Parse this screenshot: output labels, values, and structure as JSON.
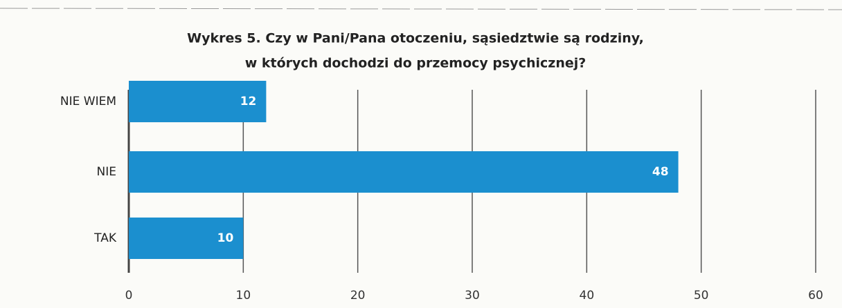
{
  "chart_data": {
    "type": "bar",
    "orientation": "horizontal",
    "title": [
      "Wykres 5. Czy w Pani/Pana otoczeniu, sąsiedztwie są rodziny,",
      "w których dochodzi do przemocy psychicznej?"
    ],
    "categories": [
      "NIE WIEM",
      "NIE",
      "TAK"
    ],
    "values": [
      12,
      48,
      10
    ],
    "color": "#1b8fcf",
    "xlim": [
      0,
      60
    ],
    "xticks": [
      0,
      10,
      20,
      30,
      40,
      50,
      60
    ],
    "grid": true
  }
}
